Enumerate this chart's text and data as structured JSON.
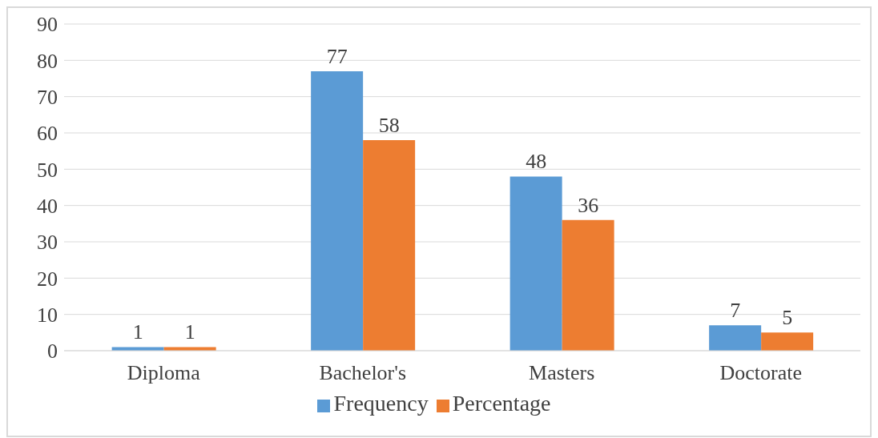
{
  "chart_data": {
    "type": "bar",
    "categories": [
      "Diploma",
      "Bachelor's",
      "Masters",
      "Doctorate"
    ],
    "series": [
      {
        "name": "Frequency",
        "color": "#5b9bd5",
        "values": [
          1,
          77,
          48,
          7
        ]
      },
      {
        "name": "Percentage",
        "color": "#ed7d31",
        "values": [
          1,
          58,
          36,
          5
        ]
      }
    ],
    "ylim": [
      0,
      90
    ],
    "yticks": [
      0,
      10,
      20,
      30,
      40,
      50,
      60,
      70,
      80,
      90
    ],
    "grid": "y",
    "legend": "bottom",
    "data_labels": true
  }
}
